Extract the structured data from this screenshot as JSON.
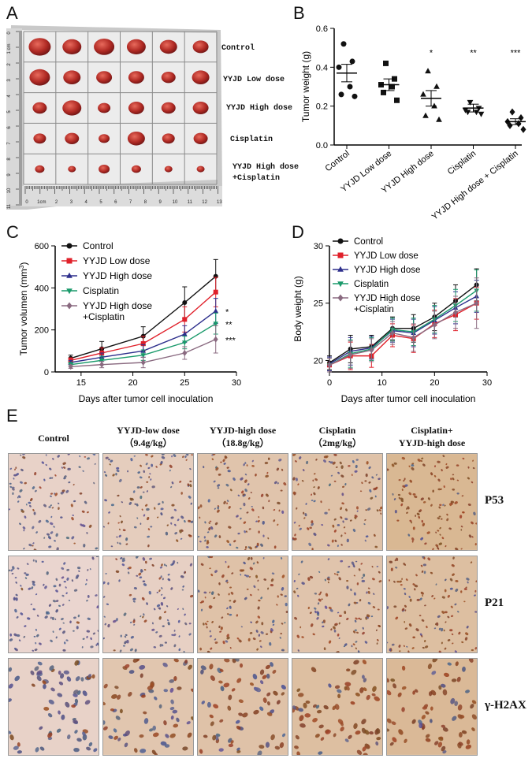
{
  "panel_letters": [
    "A",
    "B",
    "C",
    "D",
    "E"
  ],
  "panelA": {
    "groups": [
      "Control",
      "YYJD Low dose",
      "YYJD High dose",
      "Cisplatin",
      "YYJD High dose",
      "+Cisplatin"
    ],
    "ruler_left": [
      "0",
      "1 cm",
      "2",
      "3",
      "4",
      "5",
      "6",
      "7",
      "8",
      "9",
      "10",
      "11"
    ],
    "ruler_bottom": [
      "0",
      "1cm",
      "2",
      "3",
      "4",
      "5",
      "6",
      "7",
      "8",
      "9",
      "10",
      "11",
      "12",
      "13"
    ]
  },
  "chart_data": [
    {
      "id": "B",
      "type": "scatter",
      "title": "",
      "ylabel": "Tumor weight (g)",
      "xlabel": "",
      "ylim": [
        0.0,
        0.6
      ],
      "yticks": [
        "0.0",
        "0.2",
        "0.4",
        "0.6"
      ],
      "categories": [
        "Control",
        "YYJD Low dose",
        "YYJD High dose",
        "Cisplatin",
        "YYJD High dose + Cisplatin"
      ],
      "markers": [
        "circle",
        "square",
        "triangle-up",
        "triangle-down",
        "diamond"
      ],
      "points": [
        [
          0.52,
          0.43,
          0.4,
          0.3,
          0.26,
          0.25
        ],
        [
          0.42,
          0.34,
          0.31,
          0.3,
          0.27,
          0.23
        ],
        [
          0.38,
          0.3,
          0.26,
          0.2,
          0.15,
          0.13
        ],
        [
          0.22,
          0.19,
          0.18,
          0.17,
          0.17,
          0.16
        ],
        [
          0.17,
          0.14,
          0.12,
          0.11,
          0.1,
          0.08
        ]
      ],
      "means": [
        0.37,
        0.31,
        0.24,
        0.19,
        0.12
      ],
      "sems": [
        0.045,
        0.03,
        0.04,
        0.02,
        0.015
      ],
      "significance": [
        "",
        "",
        "*",
        "**",
        "***"
      ]
    },
    {
      "id": "C",
      "type": "line",
      "ylabel": "Tumor volumen (mm",
      "ylabel_sup": "3",
      "ylabel_end": ")",
      "xlabel": "Days after tumor cell inoculation",
      "xlim": [
        12.5,
        30
      ],
      "ylim": [
        0,
        600
      ],
      "xticks": [
        "15",
        "20",
        "25",
        "30"
      ],
      "yticks": [
        "0",
        "200",
        "400",
        "600"
      ],
      "x": [
        14,
        17,
        21,
        25,
        28
      ],
      "series": [
        {
          "name": "Control",
          "color": "#111111",
          "marker": "circle",
          "values": [
            65,
            110,
            170,
            330,
            455
          ],
          "errors": [
            15,
            35,
            45,
            75,
            80
          ]
        },
        {
          "name": "YYJD Low dose",
          "color": "#e0202a",
          "marker": "square",
          "values": [
            55,
            90,
            135,
            250,
            380
          ],
          "errors": [
            12,
            25,
            35,
            60,
            70
          ]
        },
        {
          "name": "YYJD High dose",
          "color": "#2d2f8c",
          "marker": "triangle-up",
          "values": [
            45,
            70,
            100,
            180,
            290
          ],
          "errors": [
            10,
            20,
            30,
            40,
            60
          ]
        },
        {
          "name": "Cisplatin",
          "color": "#1a9a6b",
          "marker": "triangle-down",
          "values": [
            35,
            55,
            80,
            140,
            230
          ],
          "errors": [
            10,
            20,
            25,
            30,
            50
          ]
        },
        {
          "name": "YYJD High dose\n+Cisplatin",
          "legend_lines": [
            "YYJD High dose",
            "+Cisplatin"
          ],
          "color": "#8a6a80",
          "marker": "diamond",
          "values": [
            25,
            35,
            45,
            90,
            155
          ],
          "errors": [
            8,
            15,
            25,
            30,
            65
          ]
        }
      ],
      "significance": [
        "",
        "",
        "*",
        "**",
        "***"
      ]
    },
    {
      "id": "D",
      "type": "line",
      "ylabel": "Body weight (g)",
      "xlabel": "Days after tumor cell inoculation",
      "xlim": [
        0,
        30
      ],
      "ylim": [
        19,
        30
      ],
      "xticks": [
        "0",
        "10",
        "20",
        "30"
      ],
      "yticks": [
        "20",
        "25",
        "30"
      ],
      "x": [
        0,
        4,
        8,
        12,
        16,
        20,
        24,
        28
      ],
      "series": [
        {
          "name": "Control",
          "color": "#111111",
          "marker": "circle",
          "values": [
            19.8,
            21.0,
            21.2,
            22.8,
            22.8,
            23.8,
            25.2,
            26.6
          ],
          "errors": [
            0.6,
            1.2,
            1.0,
            1.0,
            1.2,
            1.2,
            1.4,
            1.4
          ]
        },
        {
          "name": "YYJD Low dose",
          "color": "#e0202a",
          "marker": "square",
          "values": [
            19.6,
            20.4,
            20.4,
            22.2,
            21.9,
            23.2,
            24.0,
            25.0
          ],
          "errors": [
            0.6,
            1.2,
            1.0,
            1.0,
            1.2,
            1.2,
            1.4,
            1.4
          ]
        },
        {
          "name": "YYJD High dose",
          "color": "#2d2f8c",
          "marker": "triangle-up",
          "values": [
            19.7,
            20.8,
            21.1,
            22.6,
            22.4,
            23.5,
            24.6,
            25.6
          ],
          "errors": [
            0.6,
            1.2,
            1.0,
            1.0,
            1.2,
            1.2,
            1.4,
            1.4
          ]
        },
        {
          "name": "Cisplatin",
          "color": "#1a9a6b",
          "marker": "triangle-down",
          "values": [
            19.6,
            20.6,
            21.0,
            22.7,
            22.5,
            23.6,
            24.8,
            26.1
          ],
          "errors": [
            0.6,
            1.2,
            1.0,
            1.0,
            1.2,
            1.2,
            1.4,
            1.8
          ]
        },
        {
          "name": "YYJD High dose\n+Cisplatin",
          "legend_lines": [
            "YYJD High dose",
            "+Cisplatin"
          ],
          "color": "#8a6a80",
          "marker": "diamond",
          "values": [
            19.6,
            20.5,
            20.9,
            22.4,
            22.0,
            23.1,
            24.2,
            25.0
          ],
          "errors": [
            0.6,
            1.2,
            1.0,
            1.0,
            1.2,
            1.2,
            1.4,
            2.2
          ]
        }
      ]
    }
  ],
  "panelE": {
    "columns": [
      {
        "line1": "Control",
        "line2": ""
      },
      {
        "line1": "YYJD-low dose",
        "line2": "（9.4g/kg）"
      },
      {
        "line1": "YYJD-high dose",
        "line2": "（18.8g/kg）"
      },
      {
        "line1": "Cisplatin",
        "line2": "（2mg/kg）"
      },
      {
        "line1": "Cisplatin+",
        "line2": "YYJD-high dose"
      }
    ],
    "rows": [
      "P53",
      "P21",
      "γ-H2AX"
    ],
    "stain_intensity": [
      [
        0.15,
        0.3,
        0.55,
        0.6,
        0.9
      ],
      [
        0.05,
        0.2,
        0.6,
        0.55,
        0.7
      ],
      [
        0.15,
        0.5,
        0.6,
        0.7,
        0.85
      ]
    ]
  }
}
